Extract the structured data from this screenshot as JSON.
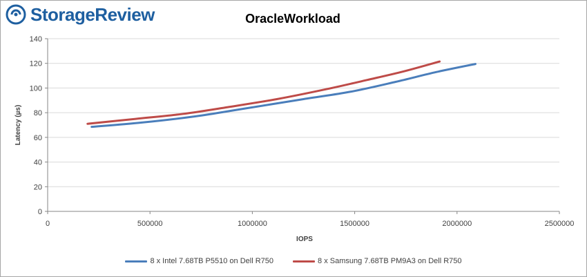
{
  "brand": {
    "logo_text": "StorageReview"
  },
  "colors": {
    "series1": "#4a7ebb",
    "series2": "#be4b48",
    "axis": "#868686",
    "grid": "#d9d9d9",
    "text": "#404040",
    "logo": "#1e5fa0"
  },
  "chart_data": {
    "type": "line",
    "title": "OracleWorkload",
    "xlabel": "IOPS",
    "ylabel": "Latency (µs)",
    "xlim": [
      0,
      2500000
    ],
    "ylim": [
      0,
      140
    ],
    "xticks": [
      0,
      500000,
      1000000,
      1500000,
      2000000,
      2500000
    ],
    "yticks": [
      0,
      20,
      40,
      60,
      80,
      100,
      120,
      140
    ],
    "grid": true,
    "legend_position": "bottom",
    "series": [
      {
        "name": "8 x Intel 7.68TB P5510 on Dell R750",
        "color": "#4a7ebb",
        "x": [
          215000,
          460000,
          720000,
          950000,
          1250000,
          1480000,
          1700000,
          1900000,
          2090000
        ],
        "y": [
          68.5,
          72,
          77,
          83,
          91,
          97,
          105,
          113,
          119.5
        ]
      },
      {
        "name": "8 x Samsung 7.68TB PM9A3 on Dell R750",
        "color": "#be4b48",
        "x": [
          195000,
          430000,
          660000,
          880000,
          1120000,
          1360000,
          1560000,
          1740000,
          1915000
        ],
        "y": [
          71,
          75,
          79,
          84.5,
          91,
          99,
          106.5,
          113.5,
          121.5
        ]
      }
    ]
  }
}
